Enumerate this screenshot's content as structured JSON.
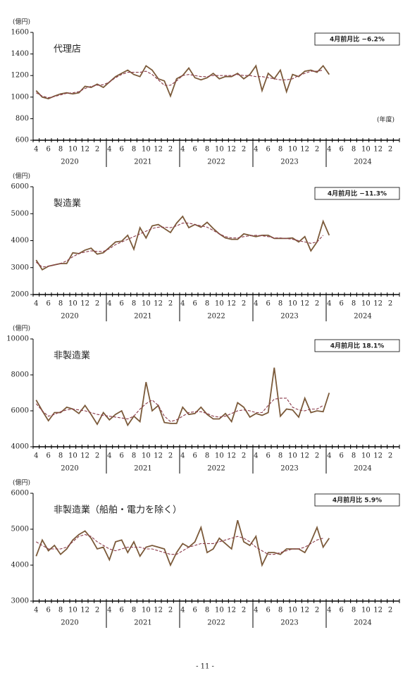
{
  "chart_data": [
    {
      "type": "line",
      "title": "代理店",
      "y_unit": "(億円)",
      "x_unit": "(年度)",
      "annotation": "4月前月比 −6.2%",
      "categories": [
        "4",
        null,
        "6",
        null,
        "8",
        null,
        "10",
        null,
        "12",
        null,
        "2",
        null,
        "4",
        null,
        "6",
        null,
        "8",
        null,
        "10",
        null,
        "12",
        null,
        "2",
        null,
        "4",
        null,
        "6",
        null,
        "8",
        null,
        "10",
        null,
        "12",
        null,
        "2",
        null,
        "4",
        null,
        "6",
        null,
        "8",
        null,
        "10",
        null,
        "12",
        null,
        "2",
        null,
        "4",
        null,
        "6",
        null,
        "8",
        null,
        "10",
        null,
        "12",
        null,
        "2",
        null
      ],
      "years": [
        "2020",
        "2021",
        "2022",
        "2023",
        "2024"
      ],
      "ylim": [
        600,
        1600
      ],
      "yticks": [
        600,
        800,
        1000,
        1200,
        1400,
        1600
      ],
      "series": [
        {
          "color": "#7b5a3a",
          "dashed": false,
          "values": [
            1060,
            1000,
            985,
            1010,
            1030,
            1040,
            1030,
            1040,
            1100,
            1090,
            1120,
            1090,
            1140,
            1190,
            1220,
            1250,
            1210,
            1190,
            1290,
            1250,
            1170,
            1150,
            1010,
            1170,
            1200,
            1270,
            1180,
            1160,
            1180,
            1220,
            1170,
            1190,
            1190,
            1220,
            1170,
            1210,
            1290,
            1060,
            1220,
            1170,
            1250,
            1050,
            1210,
            1190,
            1240,
            1250,
            1230,
            1290,
            1210,
            null,
            null,
            null,
            null,
            null,
            null,
            null,
            null,
            null,
            null,
            null
          ]
        },
        {
          "color": "#8b3a4a",
          "dashed": true,
          "values": [
            1040,
            1010,
            995,
            1005,
            1020,
            1035,
            1040,
            1050,
            1080,
            1100,
            1110,
            1115,
            1140,
            1180,
            1210,
            1230,
            1230,
            1230,
            1240,
            1210,
            1160,
            1110,
            1110,
            1150,
            1200,
            1210,
            1200,
            1190,
            1190,
            1200,
            1200,
            1200,
            1200,
            1210,
            1200,
            1200,
            1190,
            1190,
            1180,
            1170,
            1160,
            1160,
            1170,
            1200,
            1220,
            1240,
            1240,
            1250,
            null,
            null,
            null,
            null,
            null,
            null,
            null,
            null,
            null,
            null,
            null,
            null
          ]
        }
      ]
    },
    {
      "type": "line",
      "title": "製造業",
      "y_unit": "(億円)",
      "annotation": "4月前月比 −11.3%",
      "categories": [
        "4",
        null,
        "6",
        null,
        "8",
        null,
        "10",
        null,
        "12",
        null,
        "2",
        null,
        "4",
        null,
        "6",
        null,
        "8",
        null,
        "10",
        null,
        "12",
        null,
        "2",
        null,
        "4",
        null,
        "6",
        null,
        "8",
        null,
        "10",
        null,
        "12",
        null,
        "2",
        null,
        "4",
        null,
        "6",
        null,
        "8",
        null,
        "10",
        null,
        "12",
        null,
        "2",
        null,
        "4",
        null,
        "6",
        null,
        "8",
        null,
        "10",
        null,
        "12",
        null,
        "2",
        null
      ],
      "years": [
        "2020",
        "2021",
        "2022",
        "2023",
        "2024"
      ],
      "ylim": [
        2000,
        6000
      ],
      "yticks": [
        2000,
        3000,
        4000,
        5000,
        6000
      ],
      "series": [
        {
          "color": "#7b5a3a",
          "dashed": false,
          "values": [
            3280,
            2920,
            3050,
            3100,
            3150,
            3150,
            3550,
            3520,
            3650,
            3720,
            3500,
            3550,
            3750,
            3950,
            3980,
            4200,
            3680,
            4480,
            4100,
            4550,
            4600,
            4450,
            4300,
            4650,
            4900,
            4480,
            4600,
            4500,
            4680,
            4450,
            4250,
            4100,
            4050,
            4050,
            4250,
            4200,
            4150,
            4200,
            4200,
            4080,
            4080,
            4080,
            4100,
            3950,
            4150,
            3620,
            3950,
            4720,
            4200,
            null,
            null,
            null,
            null,
            null,
            null,
            null,
            null,
            null,
            null,
            null
          ]
        },
        {
          "color": "#8b3a4a",
          "dashed": true,
          "values": [
            3200,
            3020,
            3050,
            3100,
            3150,
            3250,
            3400,
            3520,
            3580,
            3620,
            3600,
            3600,
            3700,
            3850,
            3950,
            4050,
            4150,
            4250,
            4350,
            4450,
            4500,
            4500,
            4480,
            4550,
            4650,
            4650,
            4600,
            4550,
            4500,
            4380,
            4250,
            4150,
            4100,
            4100,
            4150,
            4180,
            4200,
            4180,
            4150,
            4100,
            4100,
            4080,
            4050,
            4000,
            3950,
            3900,
            3950,
            4200,
            null,
            null,
            null,
            null,
            null,
            null,
            null,
            null,
            null,
            null,
            null,
            null
          ]
        }
      ]
    },
    {
      "type": "line",
      "title": "非製造業",
      "y_unit": "(億円)",
      "annotation": "4月前月比 18.1%",
      "categories": [
        "4",
        null,
        "6",
        null,
        "8",
        null,
        "10",
        null,
        "12",
        null,
        "2",
        null,
        "4",
        null,
        "6",
        null,
        "8",
        null,
        "10",
        null,
        "12",
        null,
        "2",
        null,
        "4",
        null,
        "6",
        null,
        "8",
        null,
        "10",
        null,
        "12",
        null,
        "2",
        null,
        "4",
        null,
        "6",
        null,
        "8",
        null,
        "10",
        null,
        "12",
        null,
        "2",
        null,
        "4",
        null,
        "6",
        null,
        "8",
        null,
        "10",
        null,
        "12",
        null,
        "2",
        null
      ],
      "years": [
        "2020",
        "2021",
        "2022",
        "2023",
        "2024"
      ],
      "ylim": [
        4000,
        10000
      ],
      "yticks": [
        4000,
        6000,
        8000,
        10000
      ],
      "series": [
        {
          "color": "#7b5a3a",
          "dashed": false,
          "values": [
            6600,
            6000,
            5450,
            5900,
            5900,
            6200,
            6100,
            5850,
            6300,
            5800,
            5250,
            5900,
            5500,
            5800,
            6000,
            5200,
            5700,
            5400,
            7600,
            6000,
            6300,
            5350,
            5300,
            5300,
            6200,
            5800,
            5850,
            6200,
            5800,
            5550,
            5550,
            5850,
            5400,
            6450,
            6200,
            5650,
            5850,
            5750,
            5900,
            8400,
            5700,
            6100,
            6050,
            5650,
            6700,
            5900,
            6000,
            5950,
            7000,
            null,
            null,
            null,
            null,
            null,
            null,
            null,
            null,
            null,
            null,
            null
          ]
        },
        {
          "color": "#8b3a4a",
          "dashed": true,
          "values": [
            6400,
            6000,
            5700,
            5800,
            5950,
            6050,
            6100,
            6050,
            6000,
            5900,
            5800,
            5750,
            5700,
            5650,
            5600,
            5550,
            5700,
            6100,
            6400,
            6600,
            6300,
            5700,
            5400,
            5500,
            5700,
            5900,
            5950,
            5950,
            5850,
            5700,
            5650,
            5700,
            5850,
            6000,
            6050,
            6000,
            5900,
            5900,
            6300,
            6650,
            6700,
            6700,
            6200,
            6050,
            6000,
            6100,
            6100,
            6300,
            null,
            null,
            null,
            null,
            null,
            null,
            null,
            null,
            null,
            null,
            null,
            null
          ]
        }
      ]
    },
    {
      "type": "line",
      "title": "非製造業（船舶・電力を除く）",
      "y_unit": "(億円)",
      "annotation": "4月前月比 5.9%",
      "categories": [
        "4",
        null,
        "6",
        null,
        "8",
        null,
        "10",
        null,
        "12",
        null,
        "2",
        null,
        "4",
        null,
        "6",
        null,
        "8",
        null,
        "10",
        null,
        "12",
        null,
        "2",
        null,
        "4",
        null,
        "6",
        null,
        "8",
        null,
        "10",
        null,
        "12",
        null,
        "2",
        null,
        "4",
        null,
        "6",
        null,
        "8",
        null,
        "10",
        null,
        "12",
        null,
        "2",
        null,
        "4",
        null,
        "6",
        null,
        "8",
        null,
        "10",
        null,
        "12",
        null,
        "2",
        null
      ],
      "years": [
        "2020",
        "2021",
        "2022",
        "2023",
        "2024"
      ],
      "ylim": [
        3000,
        6000
      ],
      "yticks": [
        3000,
        4000,
        5000,
        6000
      ],
      "series": [
        {
          "color": "#7b5a3a",
          "dashed": false,
          "values": [
            4250,
            4700,
            4400,
            4550,
            4300,
            4450,
            4700,
            4850,
            4950,
            4750,
            4450,
            4500,
            4150,
            4650,
            4700,
            4350,
            4650,
            4250,
            4500,
            4550,
            4500,
            4450,
            4000,
            4350,
            4600,
            4500,
            4650,
            5050,
            4350,
            4450,
            4750,
            4600,
            4450,
            5250,
            4650,
            4550,
            4800,
            4000,
            4350,
            4350,
            4300,
            4450,
            4450,
            4450,
            4350,
            4650,
            5050,
            4500,
            4750,
            null,
            null,
            null,
            null,
            null,
            null,
            null,
            null,
            null,
            null,
            null
          ]
        },
        {
          "color": "#8b3a4a",
          "dashed": true,
          "values": [
            4650,
            4550,
            4450,
            4450,
            4450,
            4500,
            4650,
            4800,
            4850,
            4800,
            4650,
            4550,
            4450,
            4400,
            4450,
            4500,
            4500,
            4500,
            4450,
            4450,
            4400,
            4350,
            4300,
            4300,
            4400,
            4500,
            4550,
            4600,
            4600,
            4600,
            4650,
            4700,
            4750,
            4800,
            4750,
            4650,
            4500,
            4400,
            4300,
            4300,
            4350,
            4400,
            4450,
            4450,
            4500,
            4600,
            4700,
            4750,
            null,
            null,
            null,
            null,
            null,
            null,
            null,
            null,
            null,
            null,
            null,
            null
          ]
        }
      ]
    }
  ],
  "footer": "- 11 -"
}
